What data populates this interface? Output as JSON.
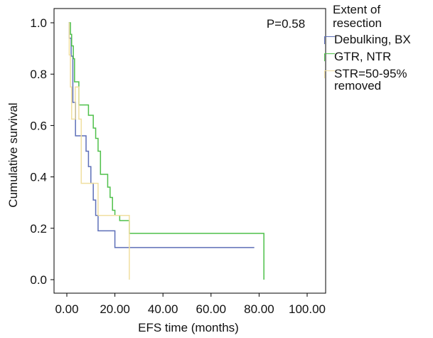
{
  "chart_data": {
    "type": "line",
    "step": true,
    "xlabel": "EFS time (months)",
    "ylabel": "Cumulative survival",
    "xlim": [
      0,
      100
    ],
    "ylim": [
      0,
      1
    ],
    "xticks": [
      "0.00",
      "20.00",
      "40.00",
      "60.00",
      "80.00",
      "100.00"
    ],
    "yticks": [
      "0.0",
      "0.2",
      "0.4",
      "0.6",
      "0.8",
      "1.0"
    ],
    "annotation": "P=0.58",
    "grid": false,
    "legend_position": "right",
    "legend_title": "Extent of resection",
    "series": [
      {
        "name": "Debulking, BX",
        "color": "#5d6fb8",
        "x": [
          0.8,
          1.0,
          1.8,
          2.5,
          3.6,
          7.0,
          8.0,
          9.0,
          10.0,
          11.0,
          12.0,
          13.0,
          20.0,
          78.0
        ],
        "y": [
          1.0,
          0.94,
          0.87,
          0.69,
          0.56,
          0.56,
          0.5,
          0.44,
          0.375,
          0.31,
          0.25,
          0.19,
          0.125,
          0.125
        ]
      },
      {
        "name": "GTR, NTR",
        "color": "#4fc04a",
        "x": [
          0.8,
          1.5,
          2.0,
          2.7,
          3.2,
          5.0,
          9.0,
          11.0,
          12.0,
          13.0,
          14.0,
          17.0,
          18.0,
          19.0,
          20.0,
          22.0,
          26.0,
          82.0,
          82.0
        ],
        "y": [
          1.0,
          0.955,
          0.91,
          0.86,
          0.77,
          0.68,
          0.64,
          0.59,
          0.55,
          0.5,
          0.41,
          0.36,
          0.32,
          0.27,
          0.25,
          0.23,
          0.18,
          0.18,
          0.0
        ]
      },
      {
        "name": "STR=50-95% removed",
        "color": "#f0dfa0",
        "x": [
          0.8,
          1.0,
          1.5,
          2.0,
          3.5,
          5.0,
          6.0,
          12.0,
          13.0,
          22.0,
          26.0,
          26.0
        ],
        "y": [
          1.0,
          0.875,
          0.75,
          0.625,
          0.75,
          0.625,
          0.375,
          0.375,
          0.25,
          0.25,
          0.25,
          0.0
        ]
      }
    ]
  }
}
